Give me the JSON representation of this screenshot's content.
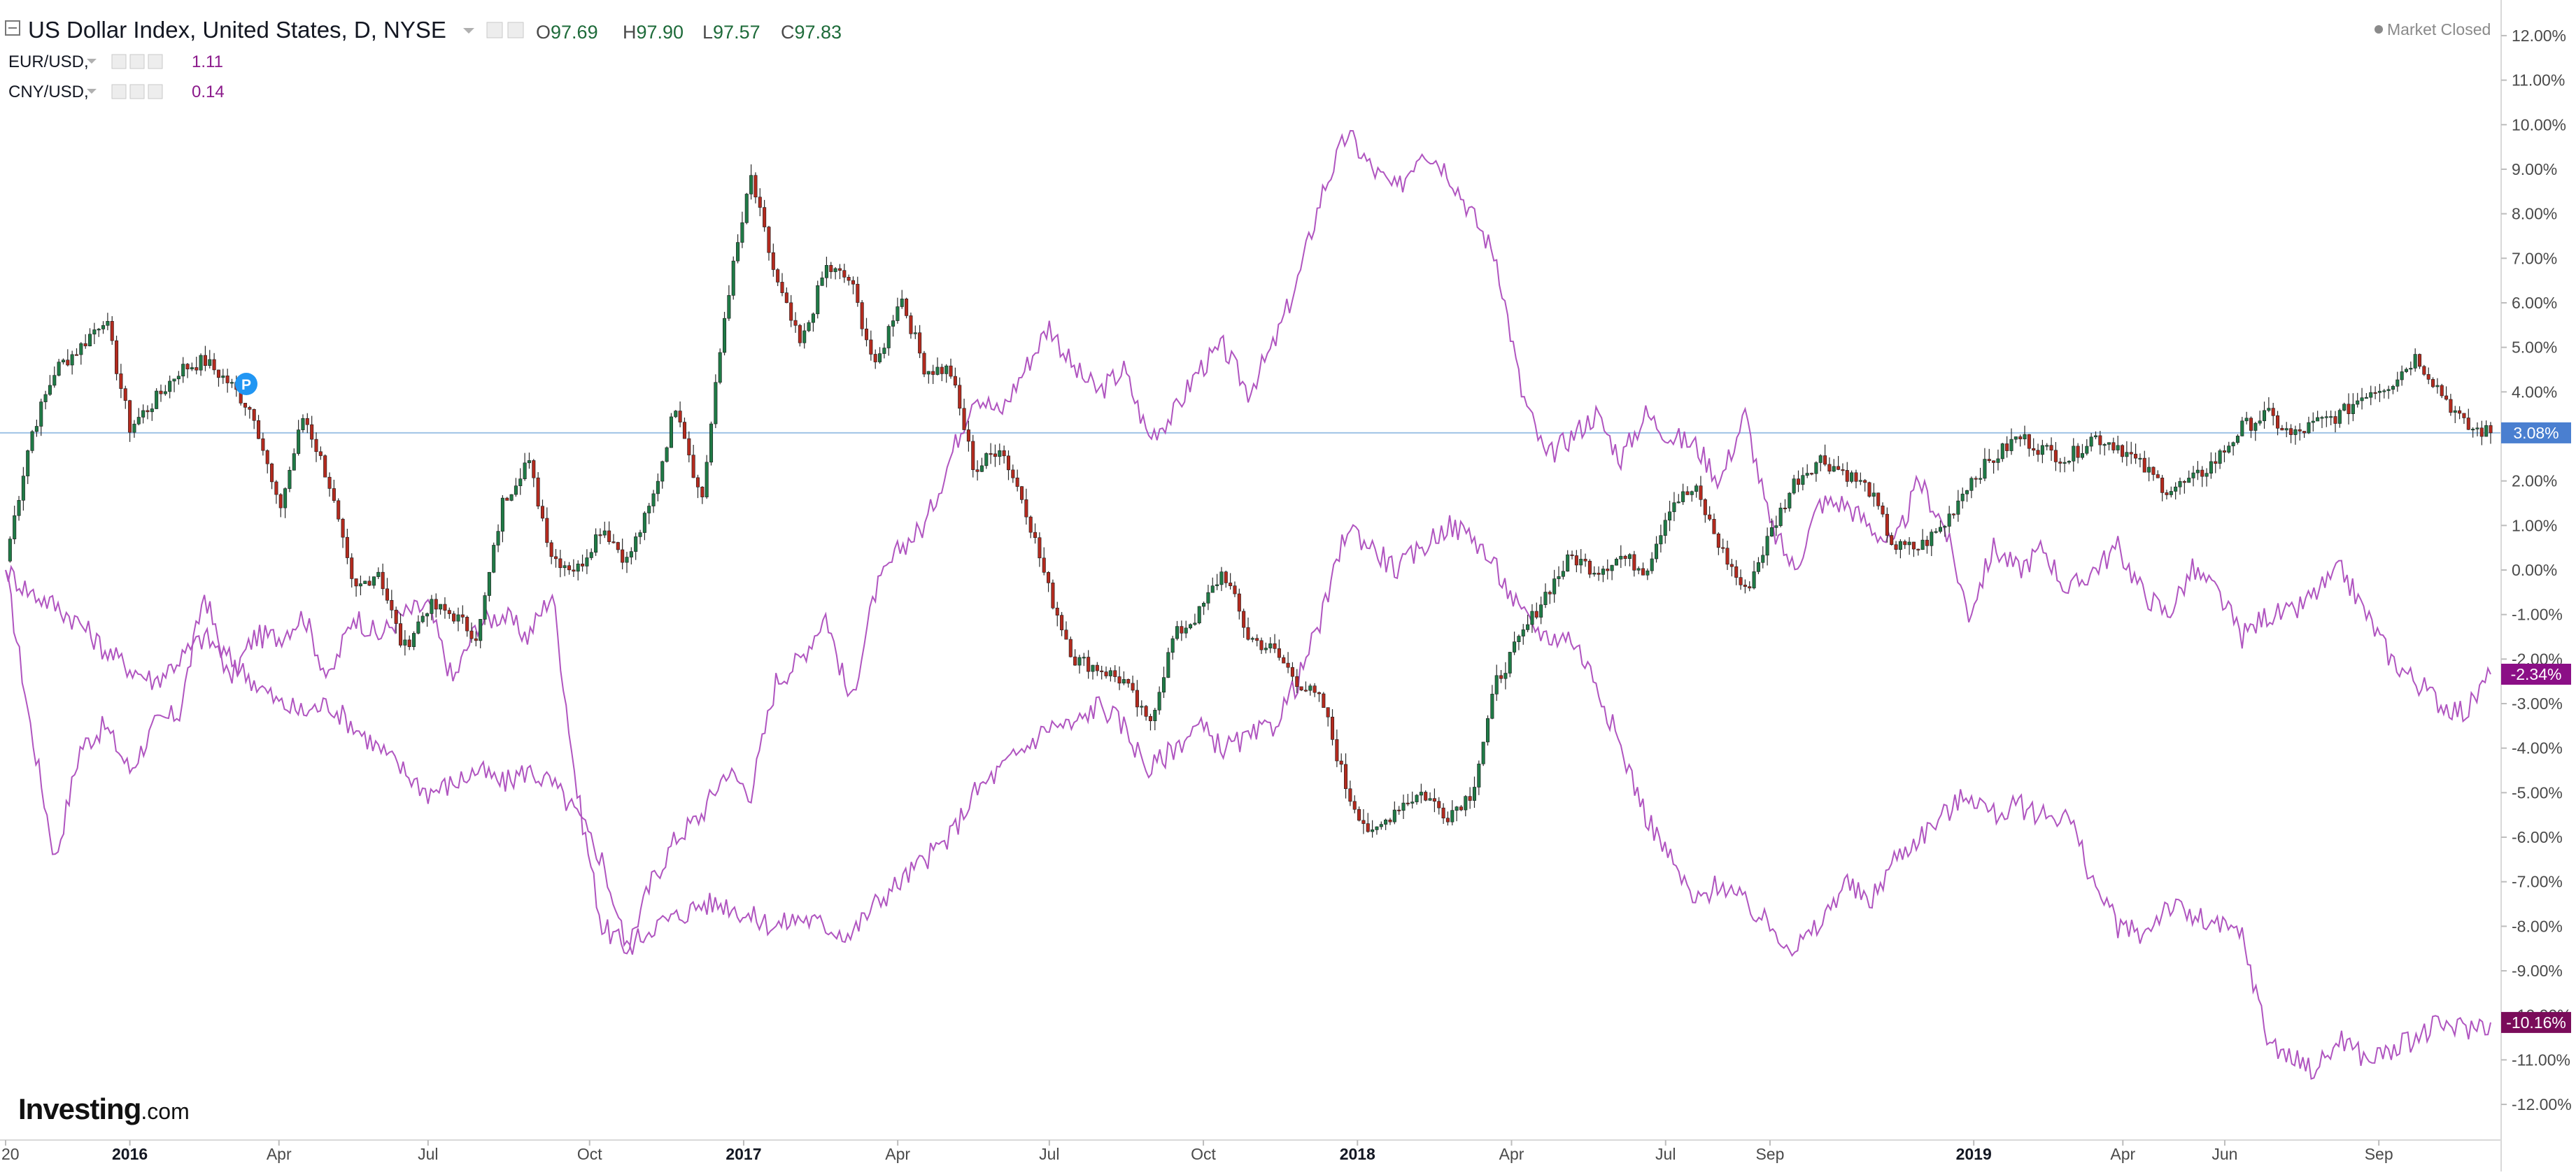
{
  "legend": {
    "title": "US Dollar Index, United States, D, NYSE",
    "ohlc": [
      {
        "key": "O",
        "value": "97.69"
      },
      {
        "key": "H",
        "value": "97.90"
      },
      {
        "key": "L",
        "value": "97.57"
      },
      {
        "key": "C",
        "value": "97.83"
      }
    ],
    "compare": [
      {
        "symbol": "EUR/USD,",
        "value": "1.11",
        "color": "#8b1a8b"
      },
      {
        "symbol": "CNY/USD,",
        "value": "0.14",
        "color": "#8b1a8b"
      }
    ]
  },
  "status": {
    "market": "Market Closed"
  },
  "marker": {
    "label": "P"
  },
  "logo": {
    "main": "Investing",
    "domain": ".com"
  },
  "colors": {
    "up_candle": "#1f7a46",
    "down_candle": "#b32a1e",
    "compare_line": "#b055c0",
    "badge_main": "#4a7fd0",
    "badge_eur": "#8b0f86",
    "badge_cny": "#7a0c5a",
    "crosshair": "#9fc3e6"
  },
  "badges": [
    {
      "label": "3.08%",
      "value": 3.08
    },
    {
      "label": "-2.34%",
      "value": -2.34
    },
    {
      "label": "-10.16%",
      "value": -10.16
    }
  ],
  "chart_data": {
    "type": "line",
    "title": "US Dollar Index, United States, D, NYSE",
    "y_axis_labels": [
      "12.00%",
      "11.00%",
      "10.00%",
      "9.00%",
      "8.00%",
      "7.00%",
      "6.00%",
      "5.00%",
      "4.00%",
      "3.00%",
      "2.00%",
      "1.00%",
      "0.00%",
      "-1.00%",
      "-2.00%",
      "-3.00%",
      "-4.00%",
      "-5.00%",
      "-6.00%",
      "-7.00%",
      "-8.00%",
      "-9.00%",
      "-10.00%",
      "-11.00%",
      "-12.00%"
    ],
    "y_ticks": [
      12,
      11,
      10,
      9,
      8,
      7,
      6,
      5,
      4,
      3,
      2,
      1,
      0,
      -1,
      -2,
      -3,
      -4,
      -5,
      -6,
      -7,
      -8,
      -9,
      -10,
      -11,
      -12
    ],
    "ylim": [
      -12.8,
      12.8
    ],
    "x_labels": [
      {
        "label": "20",
        "bold": false,
        "t": 0.0
      },
      {
        "label": "2016",
        "bold": true,
        "t": 0.05
      },
      {
        "label": "Apr",
        "bold": false,
        "t": 0.11
      },
      {
        "label": "Jul",
        "bold": false,
        "t": 0.17
      },
      {
        "label": "Oct",
        "bold": false,
        "t": 0.235
      },
      {
        "label": "2017",
        "bold": true,
        "t": 0.297
      },
      {
        "label": "Apr",
        "bold": false,
        "t": 0.359
      },
      {
        "label": "Jul",
        "bold": false,
        "t": 0.42
      },
      {
        "label": "Oct",
        "bold": false,
        "t": 0.482
      },
      {
        "label": "2018",
        "bold": true,
        "t": 0.544
      },
      {
        "label": "Apr",
        "bold": false,
        "t": 0.606
      },
      {
        "label": "Jul",
        "bold": false,
        "t": 0.668
      },
      {
        "label": "Sep",
        "bold": false,
        "t": 0.71
      },
      {
        "label": "2019",
        "bold": true,
        "t": 0.792
      },
      {
        "label": "Apr",
        "bold": false,
        "t": 0.852
      },
      {
        "label": "Jun",
        "bold": false,
        "t": 0.893
      },
      {
        "label": "Sep",
        "bold": false,
        "t": 0.955
      }
    ],
    "series": [
      {
        "name": "US Dollar Index, United States, D, NYSE",
        "style": "candles",
        "x": [
          0,
          0.01,
          0.02,
          0.03,
          0.04,
          0.05,
          0.06,
          0.07,
          0.08,
          0.09,
          0.1,
          0.11,
          0.12,
          0.13,
          0.14,
          0.15,
          0.16,
          0.17,
          0.18,
          0.19,
          0.2,
          0.21,
          0.22,
          0.23,
          0.24,
          0.25,
          0.26,
          0.27,
          0.28,
          0.29,
          0.3,
          0.31,
          0.32,
          0.33,
          0.34,
          0.35,
          0.36,
          0.37,
          0.38,
          0.39,
          0.4,
          0.41,
          0.42,
          0.43,
          0.44,
          0.45,
          0.46,
          0.47,
          0.48,
          0.49,
          0.5,
          0.51,
          0.52,
          0.53,
          0.54,
          0.55,
          0.56,
          0.57,
          0.58,
          0.59,
          0.6,
          0.61,
          0.62,
          0.63,
          0.64,
          0.65,
          0.66,
          0.67,
          0.68,
          0.69,
          0.7,
          0.71,
          0.72,
          0.73,
          0.74,
          0.75,
          0.76,
          0.77,
          0.78,
          0.79,
          0.8,
          0.81,
          0.82,
          0.83,
          0.84,
          0.85,
          0.86,
          0.87,
          0.88,
          0.89,
          0.9,
          0.91,
          0.92,
          0.93,
          0.94,
          0.95,
          0.96,
          0.97,
          0.98,
          0.99,
          1.0
        ],
        "values": [
          0.2,
          3.0,
          4.5,
          5.0,
          5.7,
          3.2,
          3.8,
          4.5,
          4.7,
          4.2,
          3.5,
          1.3,
          3.5,
          2.0,
          -0.5,
          0.0,
          -1.8,
          -0.8,
          -1.0,
          -1.5,
          1.5,
          2.5,
          0.3,
          0.0,
          1.0,
          0.2,
          1.5,
          3.8,
          1.5,
          6.0,
          8.8,
          6.5,
          5.0,
          6.8,
          6.5,
          4.5,
          6.2,
          4.5,
          4.5,
          2.2,
          2.8,
          1.5,
          -0.5,
          -2.0,
          -2.2,
          -2.5,
          -3.5,
          -1.5,
          -1.0,
          0.0,
          -1.5,
          -1.8,
          -2.5,
          -3.0,
          -5.0,
          -6.0,
          -5.3,
          -5.0,
          -5.5,
          -5.0,
          -2.5,
          -1.5,
          -0.5,
          0.3,
          0.0,
          0.3,
          0.0,
          1.5,
          1.8,
          0.5,
          -0.5,
          0.8,
          2.0,
          2.5,
          2.2,
          1.8,
          0.5,
          0.5,
          1.0,
          2.0,
          2.5,
          3.0,
          2.7,
          2.5,
          3.0,
          2.8,
          2.3,
          1.8,
          2.0,
          2.5,
          3.2,
          3.5,
          3.0,
          3.3,
          3.5,
          4.0,
          4.2,
          4.8,
          4.0,
          3.2,
          3.08
        ]
      },
      {
        "name": "EUR/USD,",
        "style": "line",
        "x": [
          0,
          0.01,
          0.02,
          0.03,
          0.04,
          0.05,
          0.06,
          0.07,
          0.08,
          0.09,
          0.1,
          0.11,
          0.12,
          0.13,
          0.14,
          0.15,
          0.16,
          0.17,
          0.18,
          0.19,
          0.2,
          0.21,
          0.22,
          0.23,
          0.24,
          0.25,
          0.26,
          0.27,
          0.28,
          0.29,
          0.3,
          0.31,
          0.32,
          0.33,
          0.34,
          0.35,
          0.36,
          0.37,
          0.38,
          0.39,
          0.4,
          0.41,
          0.42,
          0.43,
          0.44,
          0.45,
          0.46,
          0.47,
          0.48,
          0.49,
          0.5,
          0.51,
          0.52,
          0.53,
          0.54,
          0.55,
          0.56,
          0.57,
          0.58,
          0.59,
          0.6,
          0.61,
          0.62,
          0.63,
          0.64,
          0.65,
          0.66,
          0.67,
          0.68,
          0.69,
          0.7,
          0.71,
          0.72,
          0.73,
          0.74,
          0.75,
          0.76,
          0.77,
          0.78,
          0.79,
          0.8,
          0.81,
          0.82,
          0.83,
          0.84,
          0.85,
          0.86,
          0.87,
          0.88,
          0.89,
          0.9,
          0.91,
          0.92,
          0.93,
          0.94,
          0.95,
          0.96,
          0.97,
          0.98,
          0.99,
          1.0
        ],
        "values": [
          0.0,
          -3.5,
          -6.5,
          -4.0,
          -3.5,
          -4.5,
          -3.5,
          -3.2,
          -0.5,
          -2.5,
          -1.5,
          -1.5,
          -1.0,
          -2.5,
          -1.0,
          -1.5,
          -1.0,
          -0.8,
          -2.5,
          -1.2,
          -1.0,
          -1.5,
          -0.5,
          -5.0,
          -8.0,
          -8.5,
          -7.0,
          -6.0,
          -5.5,
          -4.5,
          -5.0,
          -2.5,
          -2.0,
          -1.0,
          -3.0,
          -0.5,
          0.5,
          1.0,
          2.5,
          4.0,
          3.5,
          4.5,
          5.5,
          4.5,
          4.0,
          4.5,
          3.0,
          3.5,
          4.5,
          5.0,
          4.0,
          5.0,
          6.5,
          8.5,
          9.8,
          9.0,
          8.5,
          9.5,
          9.0,
          8.0,
          7.0,
          4.0,
          2.5,
          3.0,
          3.5,
          2.5,
          3.5,
          3.0,
          2.8,
          2.0,
          3.5,
          1.0,
          0.0,
          1.5,
          1.5,
          1.0,
          0.5,
          2.0,
          1.0,
          -1.0,
          0.5,
          0.0,
          0.5,
          -0.5,
          0.0,
          0.5,
          -0.5,
          -1.0,
          0.0,
          -0.5,
          -1.5,
          -1.0,
          -1.0,
          -0.5,
          0.0,
          -1.0,
          -2.0,
          -2.5,
          -3.0,
          -3.2,
          -2.34
        ]
      },
      {
        "name": "CNY/USD,",
        "style": "line",
        "x": [
          0,
          0.01,
          0.02,
          0.03,
          0.04,
          0.05,
          0.06,
          0.07,
          0.08,
          0.09,
          0.1,
          0.11,
          0.12,
          0.13,
          0.14,
          0.15,
          0.16,
          0.17,
          0.18,
          0.19,
          0.2,
          0.21,
          0.22,
          0.23,
          0.24,
          0.25,
          0.26,
          0.27,
          0.28,
          0.29,
          0.3,
          0.31,
          0.32,
          0.33,
          0.34,
          0.35,
          0.36,
          0.37,
          0.38,
          0.39,
          0.4,
          0.41,
          0.42,
          0.43,
          0.44,
          0.45,
          0.46,
          0.47,
          0.48,
          0.49,
          0.5,
          0.51,
          0.52,
          0.53,
          0.54,
          0.55,
          0.56,
          0.57,
          0.58,
          0.59,
          0.6,
          0.61,
          0.62,
          0.63,
          0.64,
          0.65,
          0.66,
          0.67,
          0.68,
          0.69,
          0.7,
          0.71,
          0.72,
          0.73,
          0.74,
          0.75,
          0.76,
          0.77,
          0.78,
          0.79,
          0.8,
          0.81,
          0.82,
          0.83,
          0.84,
          0.85,
          0.86,
          0.87,
          0.88,
          0.89,
          0.9,
          0.91,
          0.92,
          0.93,
          0.94,
          0.95,
          0.96,
          0.97,
          0.98,
          0.99,
          1.0
        ],
        "values": [
          0.0,
          -0.5,
          -0.8,
          -1.2,
          -1.8,
          -2.2,
          -2.5,
          -2.0,
          -1.5,
          -2.0,
          -2.5,
          -3.0,
          -3.2,
          -3.0,
          -3.5,
          -4.0,
          -4.5,
          -5.0,
          -4.8,
          -4.5,
          -4.8,
          -4.5,
          -4.8,
          -5.5,
          -6.5,
          -8.5,
          -8.0,
          -7.8,
          -7.5,
          -7.5,
          -7.8,
          -8.0,
          -7.8,
          -8.0,
          -8.2,
          -7.5,
          -7.0,
          -6.5,
          -6.0,
          -5.0,
          -4.5,
          -4.0,
          -3.5,
          -3.5,
          -3.0,
          -3.5,
          -4.5,
          -4.0,
          -3.5,
          -4.0,
          -3.8,
          -3.5,
          -2.5,
          -1.0,
          1.0,
          0.5,
          0.0,
          0.5,
          1.0,
          0.8,
          0.0,
          -1.0,
          -1.5,
          -1.5,
          -2.5,
          -4.0,
          -5.5,
          -6.5,
          -7.5,
          -7.0,
          -7.5,
          -8.0,
          -8.5,
          -8.0,
          -7.0,
          -7.5,
          -6.5,
          -6.0,
          -5.5,
          -5.0,
          -5.5,
          -5.3,
          -5.5,
          -5.5,
          -7.0,
          -8.0,
          -8.2,
          -7.5,
          -7.8,
          -8.0,
          -8.2,
          -10.5,
          -11.0,
          -11.2,
          -10.5,
          -11.0,
          -10.8,
          -10.5,
          -10.2,
          -10.3,
          -10.16
        ]
      }
    ]
  }
}
